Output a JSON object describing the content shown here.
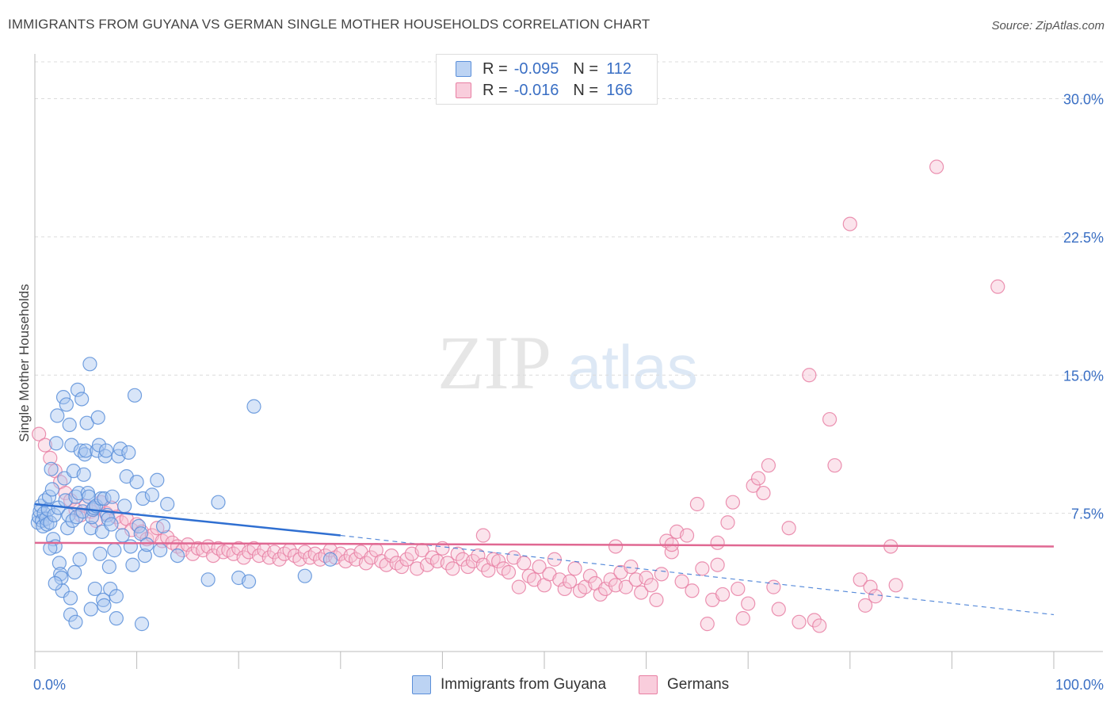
{
  "header": {
    "title": "IMMIGRANTS FROM GUYANA VS GERMAN SINGLE MOTHER HOUSEHOLDS CORRELATION CHART",
    "source": "Source: ZipAtlas.com"
  },
  "watermark": {
    "zip": "ZIP",
    "atlas": "atlas"
  },
  "legend": {
    "rows": [
      {
        "r_label": "R =",
        "r_value": "-0.095",
        "n_label": "N =",
        "n_value": "112",
        "color": "#5b8fd9"
      },
      {
        "r_label": "R =",
        "r_value": "-0.016",
        "n_label": "N =",
        "n_value": "166",
        "color": "#e87fa3"
      }
    ]
  },
  "chart_data": {
    "type": "scatter",
    "title": "IMMIGRANTS FROM GUYANA VS GERMAN SINGLE MOTHER HOUSEHOLDS CORRELATION CHART",
    "xlabel": "",
    "ylabel": "Single Mother Households",
    "xlim": [
      0,
      100
    ],
    "ylim": [
      0,
      32
    ],
    "x_tick_labels": [
      "0.0%",
      "100.0%"
    ],
    "y_ticks": [
      7.5,
      15.0,
      22.5,
      30.0
    ],
    "y_tick_labels": [
      "7.5%",
      "15.0%",
      "22.5%",
      "30.0%"
    ],
    "grid": true,
    "legend_position": "top-center",
    "series": [
      {
        "name": "Immigrants from Guyana",
        "color": "#5b8fd9",
        "fill": "#a9c6ef",
        "trend": {
          "x": [
            0,
            30
          ],
          "y": [
            8.0,
            6.3
          ],
          "dashed_to": [
            100,
            2.0
          ]
        },
        "points": [
          [
            0.3,
            7.0
          ],
          [
            0.4,
            7.3
          ],
          [
            0.5,
            7.6
          ],
          [
            0.6,
            7.9
          ],
          [
            0.7,
            7.1
          ],
          [
            0.8,
            6.8
          ],
          [
            0.9,
            7.5
          ],
          [
            1.0,
            8.2
          ],
          [
            1.1,
            7.2
          ],
          [
            1.2,
            6.9
          ],
          [
            1.3,
            7.7
          ],
          [
            1.4,
            8.4
          ],
          [
            1.5,
            7.0
          ],
          [
            1.6,
            9.9
          ],
          [
            1.7,
            8.8
          ],
          [
            1.8,
            6.1
          ],
          [
            1.9,
            7.4
          ],
          [
            2.0,
            5.7
          ],
          [
            2.1,
            11.3
          ],
          [
            2.2,
            12.8
          ],
          [
            2.3,
            7.8
          ],
          [
            2.4,
            4.8
          ],
          [
            2.5,
            4.2
          ],
          [
            2.6,
            4.0
          ],
          [
            2.7,
            3.3
          ],
          [
            2.8,
            13.8
          ],
          [
            2.9,
            9.4
          ],
          [
            3.0,
            8.2
          ],
          [
            3.1,
            13.4
          ],
          [
            3.2,
            6.7
          ],
          [
            3.3,
            7.4
          ],
          [
            3.4,
            12.3
          ],
          [
            3.5,
            2.9
          ],
          [
            3.6,
            11.2
          ],
          [
            3.7,
            7.1
          ],
          [
            3.8,
            9.8
          ],
          [
            3.9,
            4.3
          ],
          [
            4.0,
            8.4
          ],
          [
            4.1,
            7.3
          ],
          [
            4.2,
            14.2
          ],
          [
            4.3,
            8.6
          ],
          [
            4.4,
            5.0
          ],
          [
            4.5,
            10.9
          ],
          [
            4.6,
            13.7
          ],
          [
            4.7,
            7.6
          ],
          [
            4.8,
            9.6
          ],
          [
            4.9,
            10.7
          ],
          [
            5.0,
            10.9
          ],
          [
            5.1,
            12.4
          ],
          [
            5.2,
            8.6
          ],
          [
            5.3,
            8.4
          ],
          [
            5.4,
            15.6
          ],
          [
            5.5,
            6.7
          ],
          [
            5.6,
            7.3
          ],
          [
            5.7,
            7.7
          ],
          [
            5.8,
            7.8
          ],
          [
            5.9,
            3.4
          ],
          [
            6.0,
            7.9
          ],
          [
            6.1,
            10.9
          ],
          [
            6.2,
            12.7
          ],
          [
            6.3,
            11.2
          ],
          [
            6.4,
            5.3
          ],
          [
            6.5,
            8.3
          ],
          [
            6.6,
            6.5
          ],
          [
            6.7,
            2.8
          ],
          [
            6.8,
            8.3
          ],
          [
            6.9,
            10.6
          ],
          [
            7.0,
            10.9
          ],
          [
            7.1,
            7.4
          ],
          [
            7.2,
            7.2
          ],
          [
            7.3,
            4.6
          ],
          [
            7.4,
            3.4
          ],
          [
            7.5,
            6.9
          ],
          [
            7.6,
            8.4
          ],
          [
            7.8,
            5.5
          ],
          [
            8.0,
            3.0
          ],
          [
            8.2,
            10.6
          ],
          [
            8.4,
            11.0
          ],
          [
            8.6,
            6.3
          ],
          [
            8.8,
            7.9
          ],
          [
            9.0,
            9.5
          ],
          [
            9.2,
            10.8
          ],
          [
            9.4,
            5.7
          ],
          [
            9.6,
            4.7
          ],
          [
            9.8,
            13.9
          ],
          [
            10.0,
            9.2
          ],
          [
            10.2,
            6.8
          ],
          [
            10.4,
            6.4
          ],
          [
            10.6,
            8.3
          ],
          [
            10.8,
            5.2
          ],
          [
            11.0,
            5.8
          ],
          [
            11.5,
            8.5
          ],
          [
            12.0,
            9.3
          ],
          [
            12.3,
            5.5
          ],
          [
            12.6,
            6.8
          ],
          [
            13.0,
            8.0
          ],
          [
            14.0,
            5.2
          ],
          [
            17.0,
            3.9
          ],
          [
            20.0,
            4.0
          ],
          [
            21.0,
            3.8
          ],
          [
            18.0,
            8.1
          ],
          [
            21.5,
            13.3
          ],
          [
            1.5,
            5.6
          ],
          [
            2.0,
            3.7
          ],
          [
            3.5,
            2.0
          ],
          [
            5.5,
            2.3
          ],
          [
            6.8,
            2.5
          ],
          [
            8.0,
            1.8
          ],
          [
            10.5,
            1.5
          ],
          [
            26.5,
            4.1
          ],
          [
            29.0,
            5.0
          ],
          [
            4.0,
            1.6
          ]
        ]
      },
      {
        "name": "Germans",
        "color": "#e87fa3",
        "fill": "#f6c3d4",
        "trend": {
          "x": [
            0,
            100
          ],
          "y": [
            5.9,
            5.7
          ]
        },
        "points": [
          [
            0.4,
            11.8
          ],
          [
            1.0,
            11.2
          ],
          [
            1.5,
            10.5
          ],
          [
            2.0,
            9.8
          ],
          [
            2.5,
            9.2
          ],
          [
            3.0,
            8.6
          ],
          [
            3.5,
            8.2
          ],
          [
            4.0,
            7.7
          ],
          [
            4.5,
            7.4
          ],
          [
            5.0,
            7.9
          ],
          [
            5.5,
            7.6
          ],
          [
            6.0,
            7.1
          ],
          [
            6.5,
            8.1
          ],
          [
            7.0,
            7.5
          ],
          [
            7.5,
            7.8
          ],
          [
            8.0,
            7.3
          ],
          [
            8.5,
            7.0
          ],
          [
            9.0,
            7.2
          ],
          [
            9.5,
            6.6
          ],
          [
            10.0,
            6.9
          ],
          [
            10.5,
            6.5
          ],
          [
            11.0,
            6.1
          ],
          [
            11.5,
            6.3
          ],
          [
            12.0,
            6.7
          ],
          [
            12.5,
            6.0
          ],
          [
            13.0,
            6.2
          ],
          [
            13.5,
            5.9
          ],
          [
            14.0,
            5.7
          ],
          [
            14.5,
            5.5
          ],
          [
            15.0,
            5.8
          ],
          [
            15.5,
            5.3
          ],
          [
            16.0,
            5.6
          ],
          [
            16.5,
            5.5
          ],
          [
            17.0,
            5.7
          ],
          [
            17.5,
            5.2
          ],
          [
            18.0,
            5.6
          ],
          [
            18.5,
            5.4
          ],
          [
            19.0,
            5.5
          ],
          [
            19.5,
            5.3
          ],
          [
            20.0,
            5.6
          ],
          [
            20.5,
            5.1
          ],
          [
            21.0,
            5.4
          ],
          [
            21.5,
            5.6
          ],
          [
            22.0,
            5.2
          ],
          [
            22.5,
            5.5
          ],
          [
            23.0,
            5.1
          ],
          [
            23.5,
            5.4
          ],
          [
            24.0,
            5.0
          ],
          [
            24.5,
            5.3
          ],
          [
            25.0,
            5.5
          ],
          [
            25.5,
            5.2
          ],
          [
            26.0,
            5.0
          ],
          [
            26.5,
            5.4
          ],
          [
            27.0,
            5.1
          ],
          [
            27.5,
            5.3
          ],
          [
            28.0,
            5.0
          ],
          [
            28.5,
            5.2
          ],
          [
            29.0,
            5.5
          ],
          [
            29.5,
            5.1
          ],
          [
            30.0,
            5.3
          ],
          [
            30.5,
            4.9
          ],
          [
            31.0,
            5.2
          ],
          [
            31.5,
            5.0
          ],
          [
            32.0,
            5.4
          ],
          [
            32.5,
            4.8
          ],
          [
            33.0,
            5.1
          ],
          [
            33.5,
            5.5
          ],
          [
            34.0,
            4.9
          ],
          [
            34.5,
            4.7
          ],
          [
            35.0,
            5.2
          ],
          [
            35.5,
            4.8
          ],
          [
            36.0,
            4.6
          ],
          [
            36.5,
            5.0
          ],
          [
            37.0,
            5.3
          ],
          [
            37.5,
            4.5
          ],
          [
            38.0,
            5.5
          ],
          [
            38.5,
            4.7
          ],
          [
            39.0,
            5.1
          ],
          [
            39.5,
            4.9
          ],
          [
            40.0,
            5.6
          ],
          [
            40.5,
            4.8
          ],
          [
            41.0,
            4.5
          ],
          [
            41.5,
            5.3
          ],
          [
            42.0,
            5.0
          ],
          [
            42.5,
            4.6
          ],
          [
            43.0,
            4.9
          ],
          [
            43.5,
            5.2
          ],
          [
            44.0,
            4.7
          ],
          [
            44.5,
            4.4
          ],
          [
            45.0,
            5.0
          ],
          [
            45.5,
            4.9
          ],
          [
            46.0,
            4.5
          ],
          [
            46.5,
            4.3
          ],
          [
            47.0,
            5.1
          ],
          [
            47.5,
            3.5
          ],
          [
            48.0,
            4.8
          ],
          [
            48.5,
            4.1
          ],
          [
            49.0,
            3.9
          ],
          [
            49.5,
            4.6
          ],
          [
            50.0,
            3.6
          ],
          [
            50.5,
            4.2
          ],
          [
            51.0,
            5.0
          ],
          [
            51.5,
            3.9
          ],
          [
            52.0,
            3.4
          ],
          [
            52.5,
            3.8
          ],
          [
            53.0,
            4.5
          ],
          [
            53.5,
            3.3
          ],
          [
            54.0,
            3.5
          ],
          [
            54.5,
            4.1
          ],
          [
            55.0,
            3.7
          ],
          [
            55.5,
            3.1
          ],
          [
            56.0,
            3.4
          ],
          [
            56.5,
            3.9
          ],
          [
            57.0,
            3.6
          ],
          [
            57.5,
            4.3
          ],
          [
            58.0,
            3.5
          ],
          [
            58.5,
            4.6
          ],
          [
            59.0,
            3.9
          ],
          [
            59.5,
            3.2
          ],
          [
            60.0,
            4.0
          ],
          [
            60.5,
            3.6
          ],
          [
            61.0,
            2.8
          ],
          [
            61.5,
            4.2
          ],
          [
            62.0,
            6.0
          ],
          [
            62.5,
            5.4
          ],
          [
            63.0,
            6.5
          ],
          [
            63.5,
            3.8
          ],
          [
            64.0,
            6.3
          ],
          [
            64.5,
            3.3
          ],
          [
            65.0,
            8.0
          ],
          [
            65.5,
            4.5
          ],
          [
            66.0,
            1.5
          ],
          [
            66.5,
            2.8
          ],
          [
            67.0,
            4.7
          ],
          [
            67.5,
            3.1
          ],
          [
            68.0,
            7.0
          ],
          [
            68.5,
            8.1
          ],
          [
            69.0,
            3.4
          ],
          [
            69.5,
            1.8
          ],
          [
            70.0,
            2.6
          ],
          [
            70.5,
            9.0
          ],
          [
            71.0,
            9.4
          ],
          [
            71.5,
            8.6
          ],
          [
            72.0,
            10.1
          ],
          [
            72.5,
            3.5
          ],
          [
            73.0,
            2.3
          ],
          [
            74.0,
            6.7
          ],
          [
            75.0,
            1.6
          ],
          [
            76.0,
            15.0
          ],
          [
            76.5,
            1.7
          ],
          [
            77.0,
            1.4
          ],
          [
            78.0,
            12.6
          ],
          [
            78.5,
            10.1
          ],
          [
            80.0,
            23.2
          ],
          [
            81.0,
            3.9
          ],
          [
            81.5,
            2.5
          ],
          [
            82.0,
            3.5
          ],
          [
            82.5,
            3.0
          ],
          [
            84.0,
            5.7
          ],
          [
            84.5,
            3.6
          ],
          [
            88.5,
            26.3
          ],
          [
            94.5,
            19.8
          ],
          [
            44.0,
            6.3
          ],
          [
            57.0,
            5.7
          ],
          [
            62.5,
            5.8
          ],
          [
            67.0,
            5.9
          ]
        ]
      }
    ]
  },
  "bottom_legend": {
    "items": [
      {
        "label": "Immigrants from Guyana",
        "color": "#5b8fd9",
        "fill": "#bcd3f3"
      },
      {
        "label": "Germans",
        "color": "#e87fa3",
        "fill": "#f9cddc"
      }
    ]
  }
}
